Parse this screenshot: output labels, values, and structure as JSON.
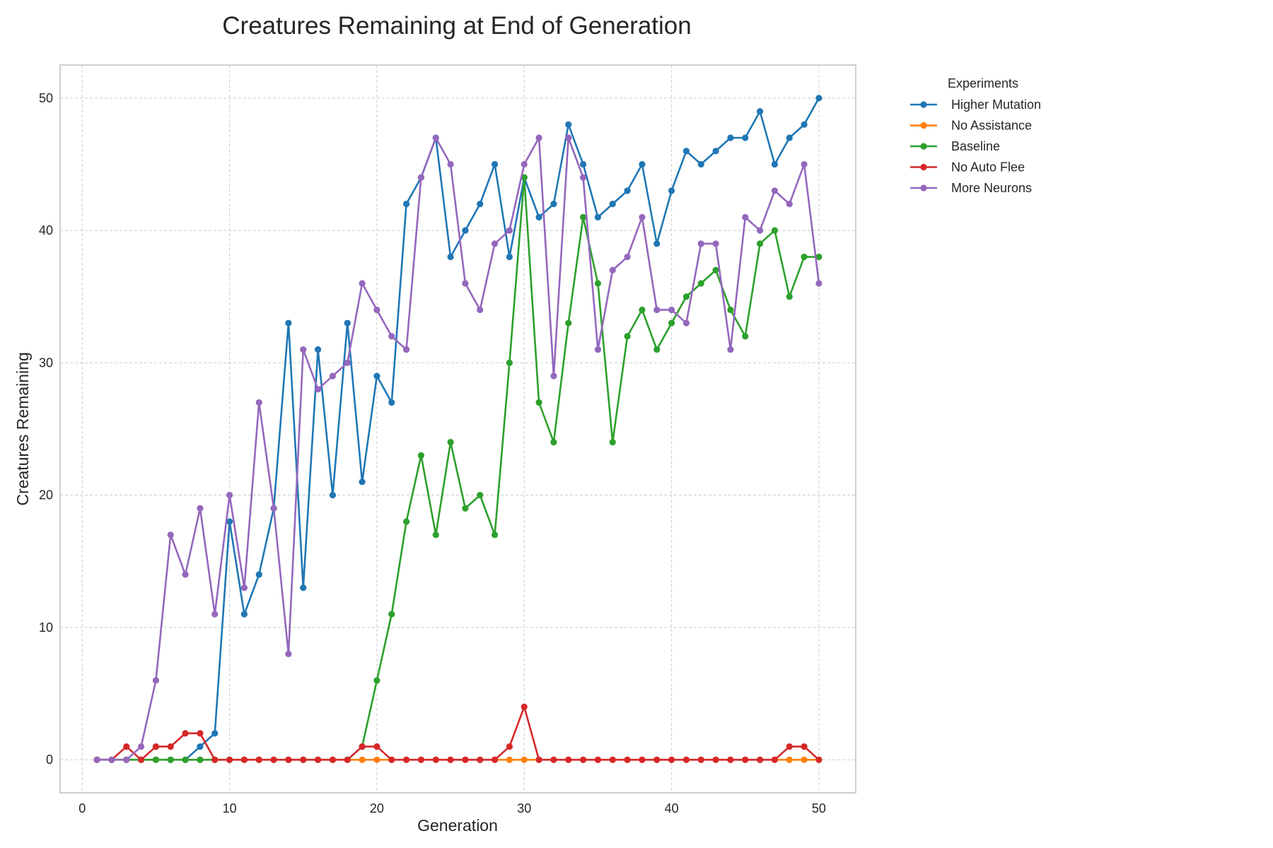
{
  "chart_data": {
    "type": "line",
    "title": "Creatures Remaining at End of Generation",
    "xlabel": "Generation",
    "ylabel": "Creatures Remaining",
    "xlim": [
      -1.5,
      52.5
    ],
    "ylim": [
      -2.5,
      52.5
    ],
    "x_ticks": [
      0,
      10,
      20,
      30,
      40,
      50
    ],
    "y_ticks": [
      0,
      10,
      20,
      30,
      40,
      50
    ],
    "grid": true,
    "legend": {
      "title": "Experiments",
      "placement": "outside-top-right"
    },
    "x": [
      1,
      2,
      3,
      4,
      5,
      6,
      7,
      8,
      9,
      10,
      11,
      12,
      13,
      14,
      15,
      16,
      17,
      18,
      19,
      20,
      21,
      22,
      23,
      24,
      25,
      26,
      27,
      28,
      29,
      30,
      31,
      32,
      33,
      34,
      35,
      36,
      37,
      38,
      39,
      40,
      41,
      42,
      43,
      44,
      45,
      46,
      47,
      48,
      49,
      50
    ],
    "series": [
      {
        "name": "Higher Mutation",
        "color": "#1f77b4",
        "values": [
          0,
          0,
          0,
          0,
          0,
          0,
          0,
          1,
          2,
          18,
          11,
          14,
          19,
          33,
          13,
          31,
          20,
          33,
          21,
          29,
          27,
          42,
          44,
          47,
          38,
          40,
          42,
          45,
          38,
          44,
          41,
          42,
          48,
          45,
          41,
          42,
          43,
          45,
          39,
          43,
          46,
          45,
          46,
          47,
          47,
          49,
          45,
          47,
          48,
          50
        ]
      },
      {
        "name": "No Assistance",
        "color": "#ff7f0e",
        "values": [
          0,
          0,
          0,
          0,
          0,
          0,
          0,
          0,
          0,
          0,
          0,
          0,
          0,
          0,
          0,
          0,
          0,
          0,
          0,
          0,
          0,
          0,
          0,
          0,
          0,
          0,
          0,
          0,
          0,
          0,
          0,
          0,
          0,
          0,
          0,
          0,
          0,
          0,
          0,
          0,
          0,
          0,
          0,
          0,
          0,
          0,
          0,
          0,
          0,
          0
        ]
      },
      {
        "name": "Baseline",
        "color": "#2ca02c",
        "values": [
          0,
          0,
          0,
          0,
          0,
          0,
          0,
          0,
          0,
          0,
          0,
          0,
          0,
          0,
          0,
          0,
          0,
          0,
          1,
          6,
          11,
          18,
          23,
          17,
          24,
          19,
          20,
          17,
          30,
          44,
          27,
          24,
          33,
          41,
          36,
          24,
          32,
          34,
          31,
          33,
          35,
          36,
          37,
          34,
          32,
          39,
          40,
          35,
          38,
          38
        ]
      },
      {
        "name": "No Auto Flee",
        "color": "#d62728",
        "values": [
          0,
          0,
          1,
          0,
          1,
          1,
          2,
          2,
          0,
          0,
          0,
          0,
          0,
          0,
          0,
          0,
          0,
          0,
          1,
          1,
          0,
          0,
          0,
          0,
          0,
          0,
          0,
          0,
          1,
          4,
          0,
          0,
          0,
          0,
          0,
          0,
          0,
          0,
          0,
          0,
          0,
          0,
          0,
          0,
          0,
          0,
          0,
          1,
          1,
          0
        ]
      },
      {
        "name": "More Neurons",
        "color": "#9467bd",
        "values": [
          0,
          0,
          0,
          1,
          6,
          17,
          14,
          19,
          11,
          20,
          13,
          27,
          19,
          8,
          31,
          28,
          29,
          30,
          36,
          34,
          32,
          31,
          44,
          47,
          45,
          36,
          34,
          39,
          40,
          45,
          47,
          29,
          47,
          44,
          31,
          37,
          38,
          41,
          34,
          34,
          33,
          39,
          39,
          31,
          41,
          40,
          43,
          42,
          45,
          36
        ]
      }
    ]
  }
}
